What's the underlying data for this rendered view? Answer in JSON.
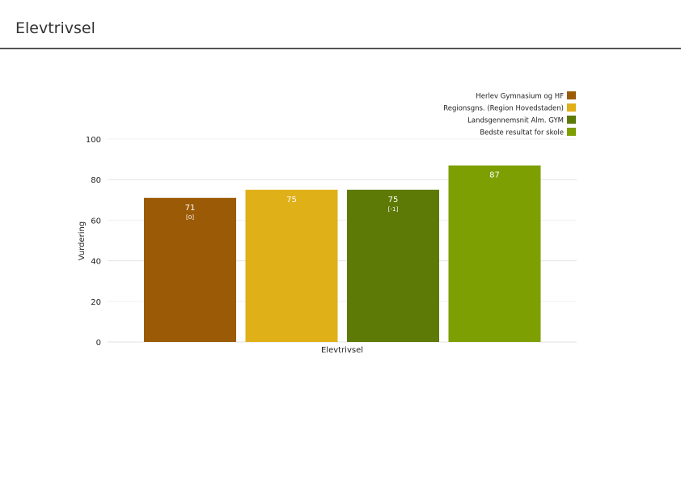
{
  "header": {
    "title": "Elevtrivsel"
  },
  "chart_data": {
    "type": "bar",
    "title": "",
    "xlabel": "Elevtrivsel",
    "ylabel": "Vurdering",
    "ylim": [
      0,
      100
    ],
    "yticks": [
      0,
      20,
      40,
      60,
      80,
      100
    ],
    "grid": true,
    "legend_position": "top-right",
    "categories": [
      "Elevtrivsel"
    ],
    "series": [
      {
        "name": "Herlev Gymnasium og HF",
        "values": [
          71
        ],
        "label": "71",
        "sublabel": "[0]",
        "color": "#9b5a05"
      },
      {
        "name": "Regionsgns. (Region Hovedstaden)",
        "values": [
          75
        ],
        "label": "75",
        "sublabel": "",
        "color": "#dfb018"
      },
      {
        "name": "Landsgennemsnit Alm. GYM",
        "values": [
          75
        ],
        "label": "75",
        "sublabel": "[-1]",
        "color": "#5d7a06"
      },
      {
        "name": "Bedste resultat for skole",
        "values": [
          87
        ],
        "label": "87",
        "sublabel": "",
        "color": "#7d9f02"
      }
    ]
  }
}
